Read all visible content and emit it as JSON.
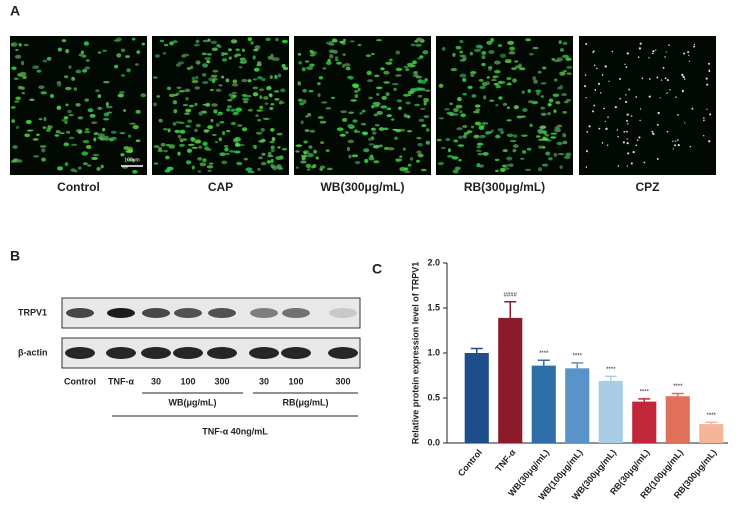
{
  "panel_a": {
    "label": "A",
    "scale_bar": "100μm",
    "images": [
      "Control",
      "CAP",
      "WB(300μg/mL)",
      "RB(300μg/mL)",
      "CPZ"
    ]
  },
  "panel_b": {
    "label": "B",
    "rows": [
      "TRPV1",
      "β-actin"
    ],
    "lanes": [
      "Control",
      "TNF-α",
      "30",
      "100",
      "300",
      "30",
      "100",
      "300"
    ],
    "groups": [
      "WB(μg/mL)",
      "RB(μg/mL)"
    ],
    "treatment": "TNF-α 40ng/mL"
  },
  "panel_c_label": "C",
  "chart_data": {
    "type": "bar",
    "y_label": "Relative protein expression level of TRPV1",
    "categories": [
      "Control",
      "TNF-α",
      "WB(30μg/mL)",
      "WB(100μg/mL)",
      "WB(300μg/mL)",
      "RB(30μg/mL)",
      "RB(100μg/mL)",
      "RB(300μg/mL)"
    ],
    "values": [
      1.0,
      1.39,
      0.86,
      0.83,
      0.69,
      0.46,
      0.52,
      0.21
    ],
    "errors": [
      0.05,
      0.18,
      0.06,
      0.06,
      0.05,
      0.03,
      0.03,
      0.02
    ],
    "annotations": [
      null,
      "####",
      "****",
      "****",
      "****",
      "****",
      "****",
      "****"
    ],
    "colors": [
      "#1f4e8c",
      "#8b1a2b",
      "#2f6fa8",
      "#5a93c9",
      "#a9cde6",
      "#c0273a",
      "#e0705a",
      "#f4b59a"
    ],
    "ylim": [
      0,
      2.0
    ],
    "yticks": [
      {
        "value": 0,
        "label": "0.0"
      },
      {
        "value": 0.5,
        "label": "0.5"
      },
      {
        "value": 1.0,
        "label": "1.0"
      },
      {
        "value": 1.5,
        "label": "1.5"
      },
      {
        "value": 2.0,
        "label": "2.0"
      }
    ]
  }
}
